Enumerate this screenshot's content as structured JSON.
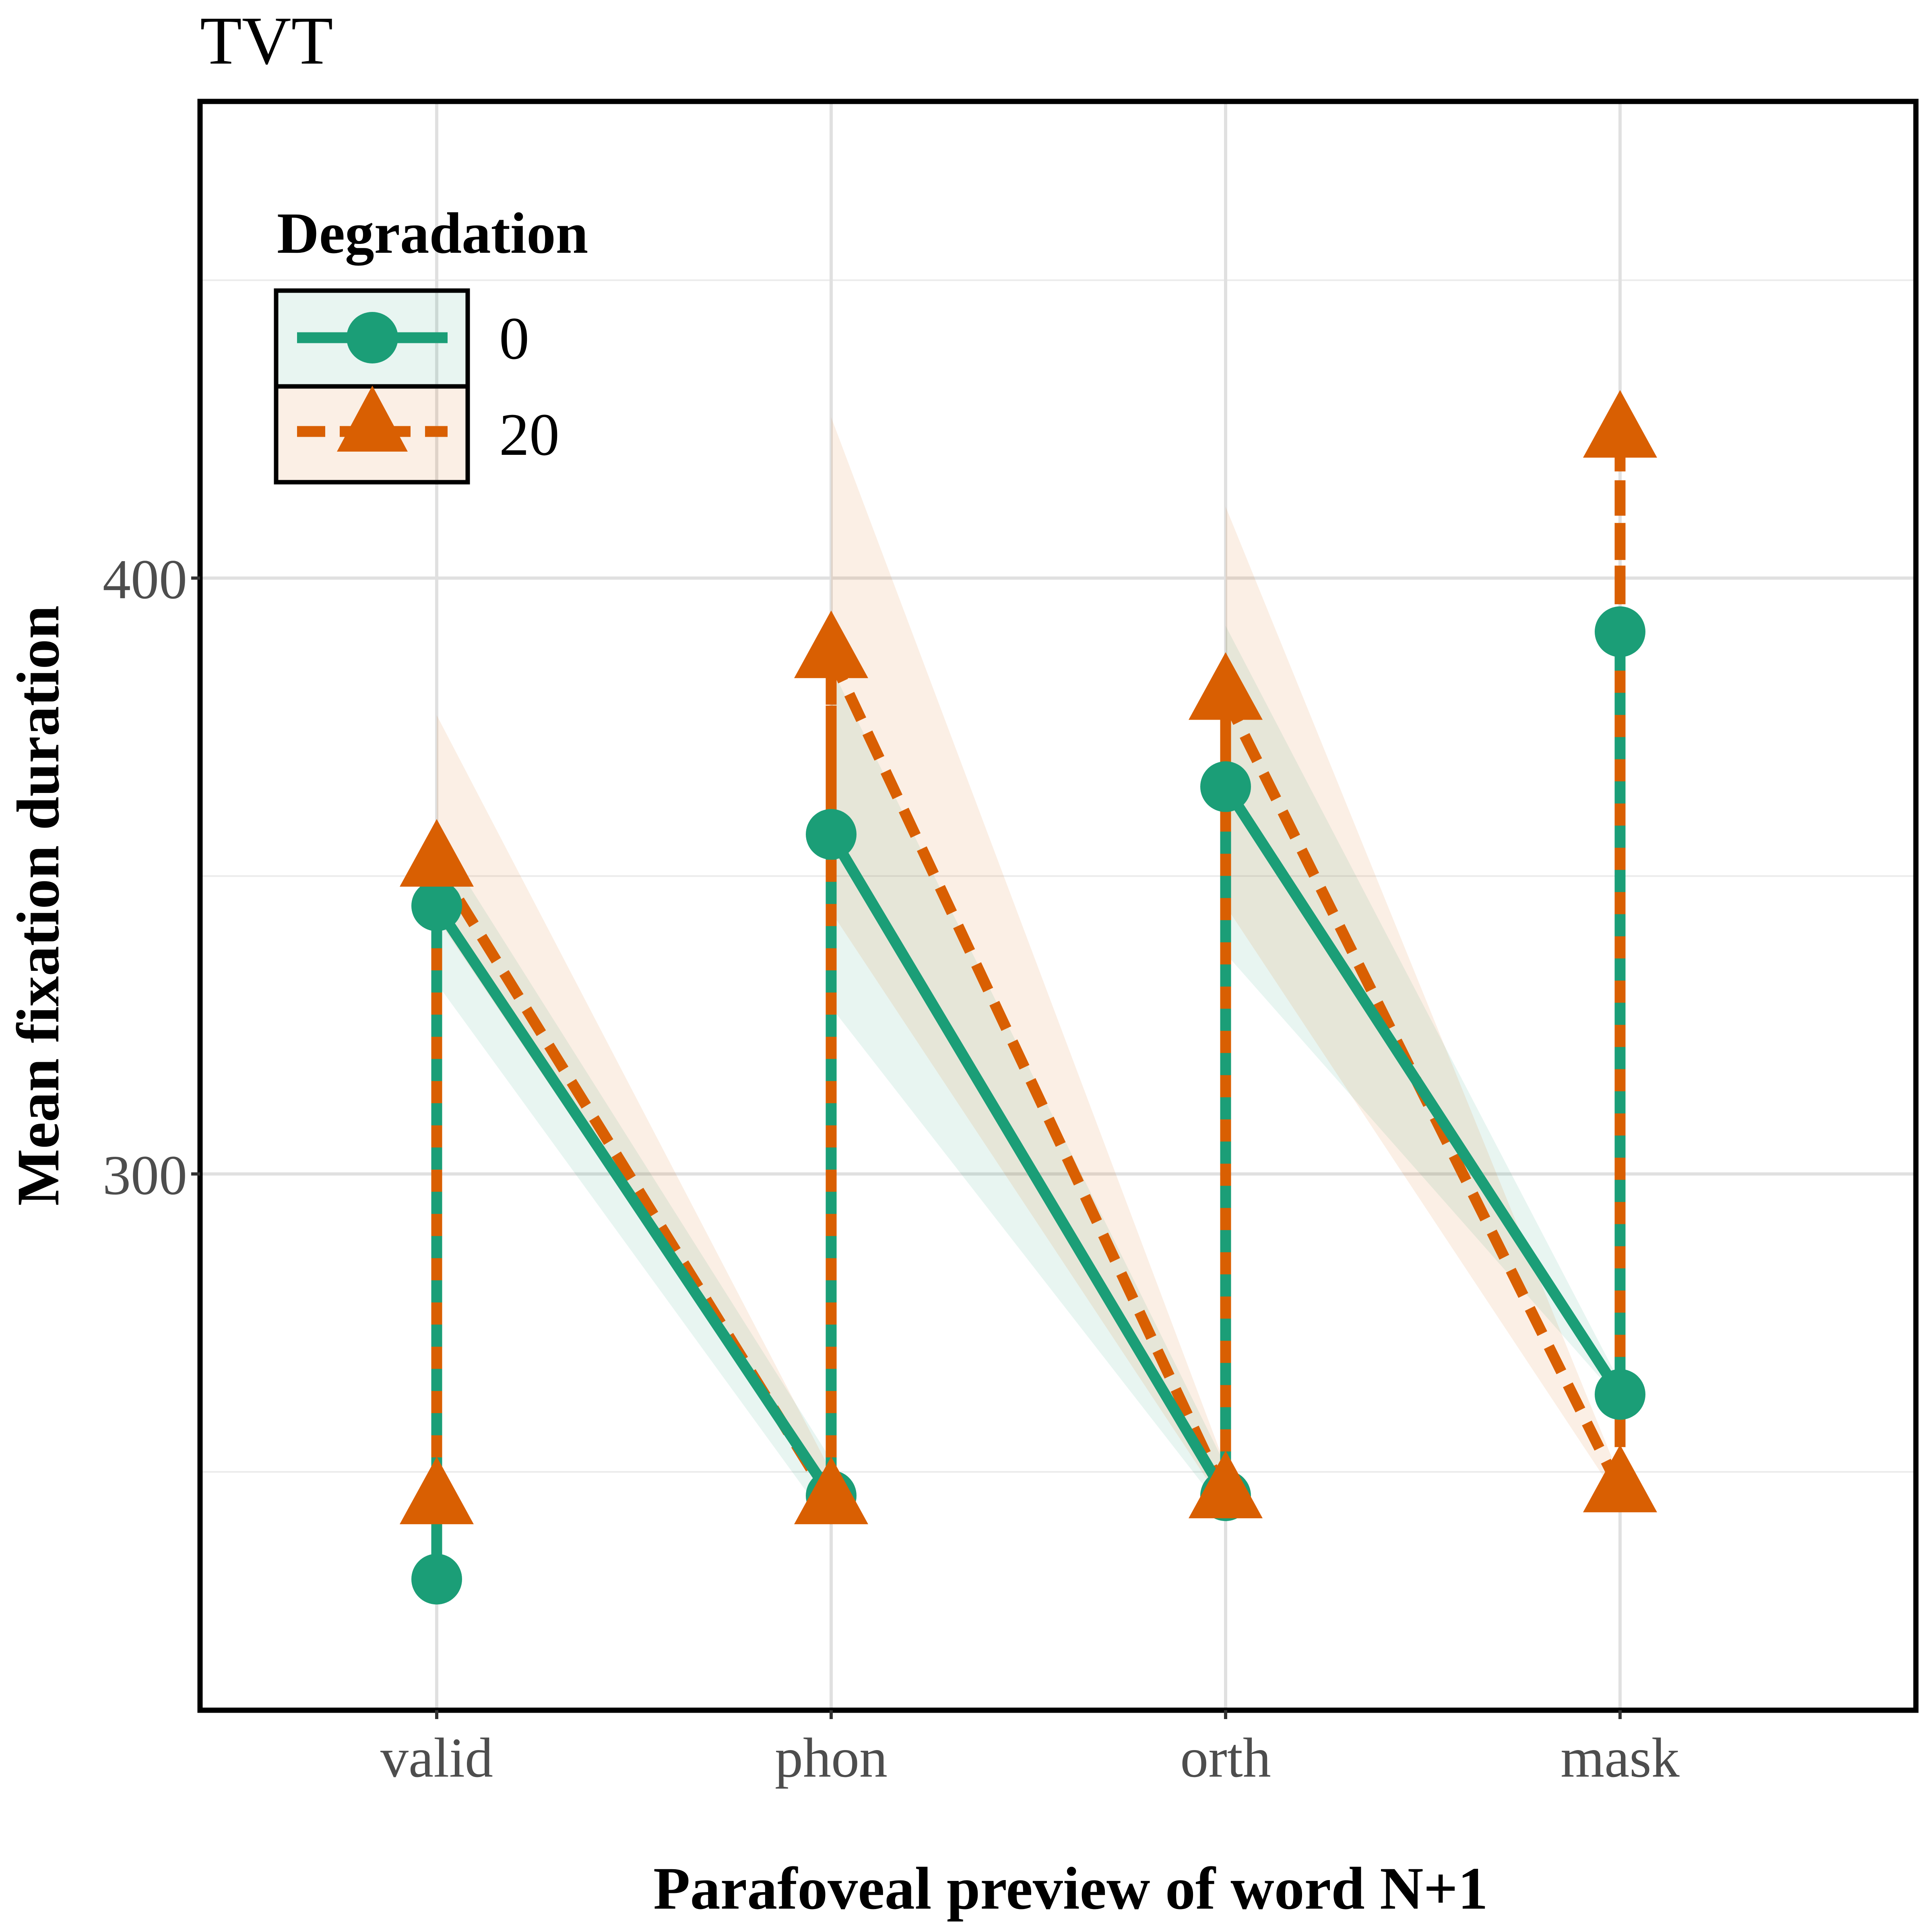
{
  "chart_data": {
    "type": "line",
    "title": "TVT",
    "xlabel": "Parafoveal preview of word N+1",
    "ylabel": "Mean fixation duration",
    "categories": [
      "valid",
      "phon",
      "orth",
      "mask"
    ],
    "ylim": [
      210,
      480
    ],
    "yticks": [
      300,
      400
    ],
    "grid": true,
    "legend": {
      "title": "Degradation",
      "position": "top-left"
    },
    "series": [
      {
        "name": "0",
        "color": "#1B9E77",
        "line_style": "solid",
        "marker": "circle",
        "points": [
          {
            "low": 232,
            "high": 345,
            "ci_low": [
              317,
              332
            ],
            "ci_high": [
              372,
              357
            ]
          },
          {
            "low": 246,
            "high": 357,
            "ci_low": [
              241,
              328
            ],
            "ci_high": [
              252,
              385
            ]
          },
          {
            "low": 246,
            "high": 365,
            "ci_low": [
              243,
              337
            ],
            "ci_high": [
              251,
              392
            ]
          },
          {
            "low": 263,
            "high": 391,
            "ci_low": [
              262,
              null
            ],
            "ci_high": [
              265,
              null
            ]
          }
        ]
      },
      {
        "name": "20",
        "color": "#D95F02",
        "line_style": "dashed",
        "marker": "triangle",
        "points": [
          {
            "low": 245,
            "high": 352,
            "ci_low": [
              332,
              343
            ],
            "ci_high": [
              372,
              377
            ]
          },
          {
            "low": 245,
            "high": 387,
            "ci_low": [
              245,
              344
            ],
            "ci_high": [
              250,
              427
            ]
          },
          {
            "low": 246,
            "high": 380,
            "ci_low": [
              244,
              345
            ],
            "ci_high": [
              251,
              412
            ]
          },
          {
            "low": 247,
            "high": 424,
            "ci_low": [
              245,
              null
            ],
            "ci_high": [
              249,
              null
            ]
          }
        ]
      }
    ]
  }
}
